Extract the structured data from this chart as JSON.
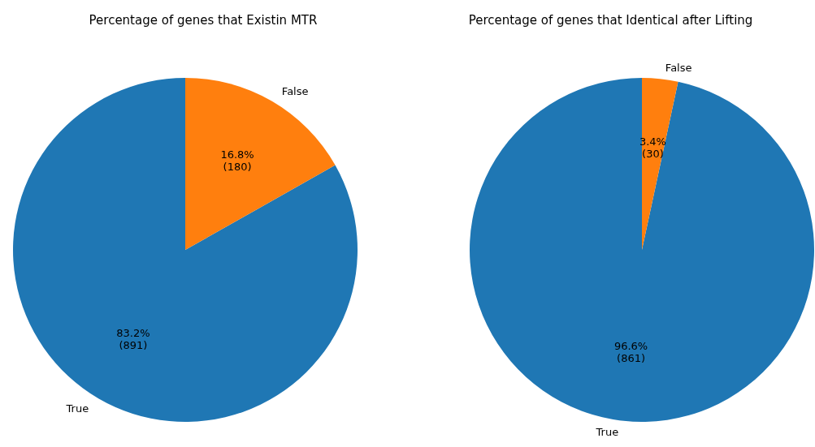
{
  "chart_data": [
    {
      "type": "pie",
      "title": "Percentage of genes that Existin MTR",
      "categories": [
        "True",
        "False"
      ],
      "values": [
        891,
        180
      ],
      "colors": [
        "#1f77b4",
        "#ff7f0e"
      ],
      "value_labels": [
        "83.2%\n(891)",
        "16.8%\n(180)"
      ]
    },
    {
      "type": "pie",
      "title": "Percentage of genes that Identical after Lifting",
      "categories": [
        "True",
        "False"
      ],
      "values": [
        861,
        30
      ],
      "colors": [
        "#1f77b4",
        "#ff7f0e"
      ],
      "value_labels": [
        "96.6%\n(861)",
        "3.4%\n(30)"
      ]
    }
  ]
}
